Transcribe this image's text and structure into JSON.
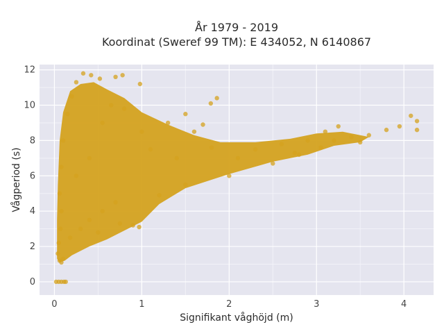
{
  "chart_data": {
    "type": "scatter",
    "title_line1": "År 1979 - 2019",
    "title_line2": "Koordinat (Sweref 99 TM): E 434052, N 6140867",
    "xlabel": "Signifikant våghöjd (m)",
    "ylabel": "Vågperiod (s)",
    "xlim": [
      -0.17,
      4.34
    ],
    "ylim": [
      -0.75,
      12.3
    ],
    "x_ticks": [
      0,
      1,
      2,
      3,
      4
    ],
    "y_ticks": [
      0,
      2,
      4,
      6,
      8,
      10,
      12
    ],
    "grid": true,
    "legend": "none",
    "background_color": "#e5e5ef",
    "marker_color": "#d4a21f",
    "points": [
      {
        "x": 0.02,
        "y": 0.0
      },
      {
        "x": 0.05,
        "y": 0.0
      },
      {
        "x": 0.08,
        "y": 0.0
      },
      {
        "x": 0.11,
        "y": 0.0
      },
      {
        "x": 0.13,
        "y": 0.0
      },
      {
        "x": 0.04,
        "y": 1.6
      },
      {
        "x": 0.06,
        "y": 1.2
      },
      {
        "x": 0.08,
        "y": 1.1
      },
      {
        "x": 0.1,
        "y": 1.3
      },
      {
        "x": 0.05,
        "y": 2.2
      },
      {
        "x": 0.07,
        "y": 3.0
      },
      {
        "x": 0.08,
        "y": 4.0
      },
      {
        "x": 0.06,
        "y": 5.0
      },
      {
        "x": 0.08,
        "y": 6.5
      },
      {
        "x": 0.1,
        "y": 8.0
      },
      {
        "x": 0.15,
        "y": 9.5
      },
      {
        "x": 0.2,
        "y": 10.5
      },
      {
        "x": 0.25,
        "y": 11.3
      },
      {
        "x": 0.33,
        "y": 11.8
      },
      {
        "x": 0.42,
        "y": 11.7
      },
      {
        "x": 0.52,
        "y": 11.5
      },
      {
        "x": 0.7,
        "y": 11.6
      },
      {
        "x": 0.78,
        "y": 11.7
      },
      {
        "x": 0.98,
        "y": 11.2
      },
      {
        "x": 0.18,
        "y": 2.5
      },
      {
        "x": 0.3,
        "y": 3.0
      },
      {
        "x": 0.4,
        "y": 3.5
      },
      {
        "x": 0.55,
        "y": 4.0
      },
      {
        "x": 0.7,
        "y": 4.5
      },
      {
        "x": 0.9,
        "y": 3.2
      },
      {
        "x": 1.2,
        "y": 4.9
      },
      {
        "x": 1.5,
        "y": 5.5
      },
      {
        "x": 2.0,
        "y": 6.0
      },
      {
        "x": 2.5,
        "y": 6.7
      },
      {
        "x": 2.8,
        "y": 7.2
      },
      {
        "x": 1.0,
        "y": 8.5
      },
      {
        "x": 1.3,
        "y": 9.0
      },
      {
        "x": 1.5,
        "y": 9.5
      },
      {
        "x": 1.7,
        "y": 8.9
      },
      {
        "x": 1.86,
        "y": 10.4
      },
      {
        "x": 1.79,
        "y": 10.1
      },
      {
        "x": 1.6,
        "y": 8.5
      },
      {
        "x": 2.1,
        "y": 7.0
      },
      {
        "x": 2.3,
        "y": 7.5
      },
      {
        "x": 2.6,
        "y": 7.8
      },
      {
        "x": 2.9,
        "y": 8.0
      },
      {
        "x": 3.05,
        "y": 7.6
      },
      {
        "x": 3.2,
        "y": 8.0
      },
      {
        "x": 3.4,
        "y": 8.2
      },
      {
        "x": 3.6,
        "y": 8.3
      },
      {
        "x": 3.8,
        "y": 8.6
      },
      {
        "x": 3.95,
        "y": 8.8
      },
      {
        "x": 4.08,
        "y": 9.4
      },
      {
        "x": 4.15,
        "y": 9.1
      },
      {
        "x": 4.15,
        "y": 8.6
      },
      {
        "x": 3.5,
        "y": 7.9
      },
      {
        "x": 3.1,
        "y": 8.5
      },
      {
        "x": 3.25,
        "y": 8.8
      },
      {
        "x": 2.75,
        "y": 7.3
      },
      {
        "x": 0.5,
        "y": 2.8
      },
      {
        "x": 0.75,
        "y": 3.3
      },
      {
        "x": 0.97,
        "y": 3.1
      },
      {
        "x": 0.25,
        "y": 6.0
      },
      {
        "x": 0.4,
        "y": 7.0
      },
      {
        "x": 0.55,
        "y": 9.0
      },
      {
        "x": 0.65,
        "y": 10.0
      },
      {
        "x": 0.8,
        "y": 9.8
      },
      {
        "x": 1.1,
        "y": 7.5
      },
      {
        "x": 1.4,
        "y": 7.0
      },
      {
        "x": 1.8,
        "y": 7.6
      }
    ]
  }
}
